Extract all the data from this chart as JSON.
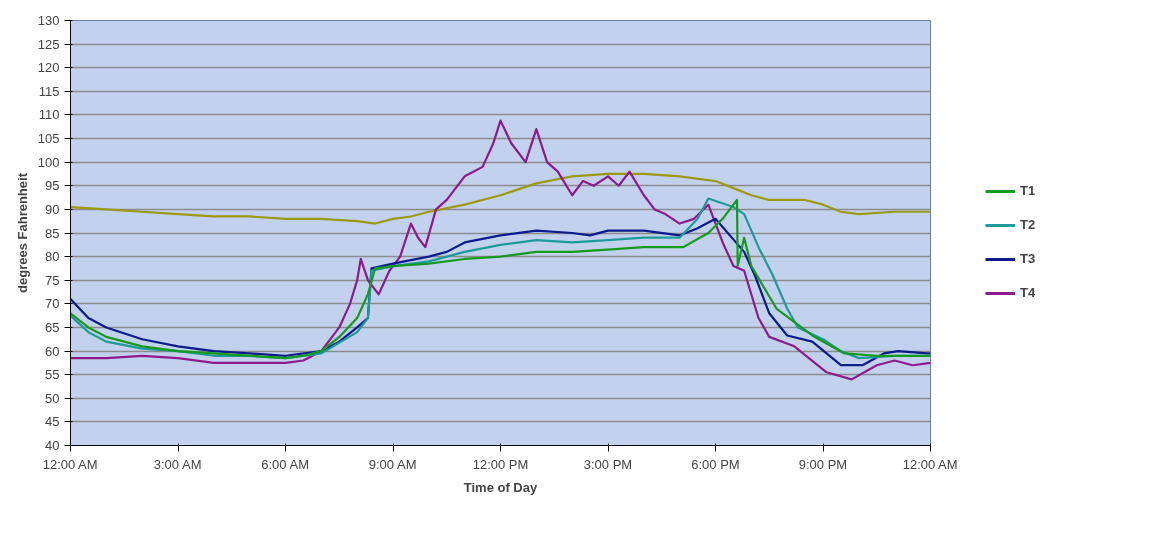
{
  "chart_data": {
    "type": "line",
    "xlabel": "Time of Day",
    "ylabel": "degrees Fahrenheit",
    "xlim": [
      0,
      24
    ],
    "xticks": [
      {
        "value": 0,
        "label": "12:00 AM"
      },
      {
        "value": 3,
        "label": "3:00 AM"
      },
      {
        "value": 6,
        "label": "6:00 AM"
      },
      {
        "value": 9,
        "label": "9:00 AM"
      },
      {
        "value": 12,
        "label": "12:00 PM"
      },
      {
        "value": 15,
        "label": "3:00 PM"
      },
      {
        "value": 18,
        "label": "6:00 PM"
      },
      {
        "value": 21,
        "label": "9:00 PM"
      },
      {
        "value": 24,
        "label": "12:00 AM"
      }
    ],
    "ylim": [
      40,
      130
    ],
    "yticks": [
      40,
      45,
      50,
      55,
      60,
      65,
      70,
      75,
      80,
      85,
      90,
      95,
      100,
      105,
      110,
      115,
      120,
      125,
      130
    ],
    "grid": "y",
    "legend": "right",
    "marker": "none",
    "line_style": "solid",
    "series": [
      {
        "name": "T1",
        "color": "#169a1e",
        "x": [
          0,
          0.5,
          1,
          2,
          3,
          4,
          5,
          6,
          6.5,
          7,
          7.5,
          8,
          8.3,
          8.5,
          9,
          10,
          11,
          12,
          13,
          14,
          15,
          16,
          17.1,
          17.8,
          18.2,
          18.6,
          18.62,
          18.8,
          19,
          19.7,
          20.7,
          21.6,
          22.5,
          23.9,
          24
        ],
        "values": [
          68,
          65,
          63,
          61,
          60,
          59.5,
          59,
          58.5,
          59,
          60,
          63,
          67,
          72,
          77.5,
          78,
          78.5,
          79.5,
          80,
          81,
          81,
          81.5,
          82,
          82,
          85,
          88,
          92,
          78,
          84,
          78,
          69,
          63.3,
          59.5,
          59,
          59,
          59
        ]
      },
      {
        "name": "T2",
        "color": "#1f9a9a",
        "x": [
          0,
          0.5,
          1,
          2,
          3,
          4,
          5,
          6,
          7,
          8,
          8.3,
          8.4,
          9,
          10,
          11,
          12,
          13,
          14,
          15,
          16,
          17,
          17.5,
          17.8,
          18.5,
          18.8,
          19.2,
          19.6,
          20,
          20.3,
          21,
          21.5,
          22,
          23,
          24
        ],
        "values": [
          67.5,
          64,
          62,
          60.5,
          60,
          59,
          59,
          58.5,
          59.5,
          64,
          67,
          77,
          78,
          79,
          81,
          82.5,
          83.5,
          83,
          83.5,
          84,
          84,
          88,
          92.3,
          90.5,
          89,
          82,
          76,
          69,
          65,
          62.5,
          60,
          58.5,
          59,
          59
        ]
      },
      {
        "name": "T3",
        "color": "#0b1b8c",
        "x": [
          0,
          0.5,
          1,
          2,
          3,
          4,
          5,
          6,
          7,
          7.5,
          8,
          8.3,
          8.4,
          9,
          10,
          10.5,
          11,
          12,
          13,
          14,
          14.5,
          15,
          16,
          17,
          17.5,
          18,
          18.8,
          19.1,
          19.5,
          20,
          20.7,
          21.5,
          22.1,
          22.7,
          23.1,
          23.9,
          24
        ],
        "values": [
          71,
          67,
          65,
          62.5,
          61,
          60,
          59.5,
          59,
          60,
          62,
          65,
          67,
          77.5,
          78.5,
          80,
          81,
          83,
          84.5,
          85.5,
          85,
          84.5,
          85.5,
          85.5,
          84.5,
          86,
          88,
          81,
          76,
          68,
          63.3,
          62,
          57,
          57,
          59.5,
          60,
          59.5,
          59.5
        ]
      },
      {
        "name": "T4",
        "color": "#8e1a8e",
        "x": [
          0,
          1,
          2,
          3,
          4,
          5,
          6,
          6.5,
          7,
          7.5,
          7.8,
          8,
          8.1,
          8.3,
          8.6,
          8.9,
          9.2,
          9.5,
          9.7,
          9.9,
          10.2,
          10.5,
          11,
          11.5,
          11.8,
          12,
          12.3,
          12.7,
          13,
          13.3,
          13.6,
          14,
          14.3,
          14.6,
          15,
          15.3,
          15.6,
          16,
          16.3,
          16.6,
          17,
          17.4,
          17.8,
          18.2,
          18.5,
          18.8,
          19.2,
          19.5,
          20.2,
          21.1,
          21.8,
          22.5,
          23,
          23.5,
          24
        ],
        "values": [
          58.5,
          58.5,
          59,
          58.5,
          57.5,
          57.5,
          57.5,
          58,
          60,
          65,
          70,
          75,
          79.5,
          75,
          72,
          77,
          80,
          87,
          84,
          82,
          90,
          92,
          97,
          99,
          104,
          108.8,
          104,
          100,
          107,
          100,
          98,
          93,
          96,
          95,
          97,
          95,
          98,
          93,
          90,
          89,
          87,
          88,
          91,
          83,
          78,
          77,
          67,
          63,
          61,
          55.5,
          54,
          57,
          58,
          57,
          57.5
        ]
      },
      {
        "color": "#9c9a10",
        "x": [
          0,
          1,
          2,
          3,
          4,
          5,
          6,
          7,
          8,
          8.5,
          9,
          9.5,
          10,
          11,
          12,
          13,
          14,
          15,
          15.5,
          16,
          17,
          18,
          18.5,
          19,
          19.5,
          20,
          20.5,
          21,
          21.5,
          22,
          23,
          24
        ],
        "values": [
          90.5,
          90,
          89.5,
          89,
          88.5,
          88.5,
          88,
          88,
          87.5,
          87,
          88,
          88.5,
          89.5,
          91,
          93,
          95.5,
          97,
          97.5,
          97.5,
          97.5,
          97,
          96,
          94.5,
          93,
          92,
          92,
          92,
          91,
          89.5,
          89,
          89.5,
          89.5
        ]
      }
    ]
  }
}
